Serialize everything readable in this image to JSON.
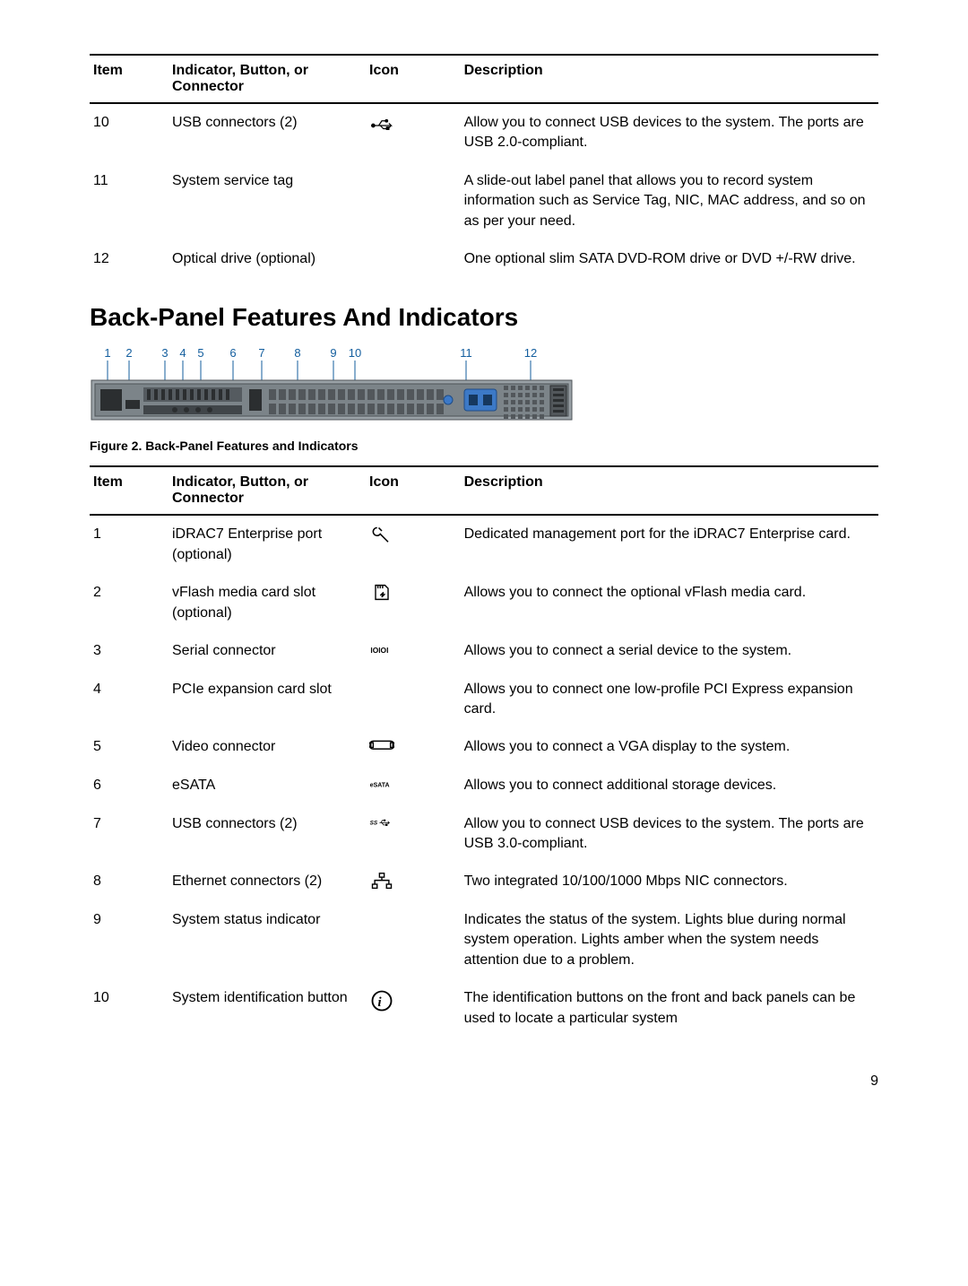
{
  "table1": {
    "headers": {
      "item": "Item",
      "indicator": "Indicator, Button, or Connector",
      "icon": "Icon",
      "description": "Description"
    },
    "rows": [
      {
        "item": "10",
        "indicator": "USB connectors (2)",
        "icon": "usb",
        "description": "Allow you to connect USB devices to the system. The ports are USB 2.0-compliant."
      },
      {
        "item": "11",
        "indicator": "System service tag",
        "icon": "",
        "description": "A slide-out label panel that allows you to record system information such as Service Tag, NIC, MAC address, and so on as per your need."
      },
      {
        "item": "12",
        "indicator": "Optical drive (optional)",
        "icon": "",
        "description": "One optional slim SATA DVD-ROM drive or DVD +/-RW drive."
      }
    ]
  },
  "section_heading": "Back-Panel Features And Indicators",
  "figure_caption": "Figure 2. Back-Panel Features and Indicators",
  "diagram": {
    "labels": [
      "1",
      "2",
      "3",
      "4",
      "5",
      "6",
      "7",
      "8",
      "9",
      "10",
      "11",
      "12"
    ],
    "label_positions_x": [
      20,
      44,
      84,
      104,
      124,
      160,
      192,
      232,
      272,
      296,
      420,
      492
    ],
    "chassis_color": "#9aa2a7",
    "chassis_border": "#4d5357",
    "bg_color": "#f2f2f2",
    "label_color": "#135e9e"
  },
  "table2": {
    "headers": {
      "item": "Item",
      "indicator": "Indicator, Button, or Connector",
      "icon": "Icon",
      "description": "Description"
    },
    "rows": [
      {
        "item": "1",
        "indicator": "iDRAC7 Enterprise port (optional)",
        "icon": "wrench",
        "description": "Dedicated management port for the iDRAC7 Enterprise card."
      },
      {
        "item": "2",
        "indicator": "vFlash media card slot (optional)",
        "icon": "sdcard",
        "description": "Allows you to connect the optional vFlash media card."
      },
      {
        "item": "3",
        "indicator": "Serial connector",
        "icon": "serial",
        "description": "Allows you to connect a serial device to the system."
      },
      {
        "item": "4",
        "indicator": "PCIe expansion card slot",
        "icon": "",
        "description": "Allows you to connect one low-profile PCI Express expansion card."
      },
      {
        "item": "5",
        "indicator": "Video connector",
        "icon": "vga",
        "description": "Allows you to connect a VGA display to the system."
      },
      {
        "item": "6",
        "indicator": "eSATA",
        "icon": "esata",
        "description": "Allows you to connect additional storage devices."
      },
      {
        "item": "7",
        "indicator": "USB connectors (2)",
        "icon": "ssusb",
        "description": "Allow you to connect USB devices to the system. The ports are USB 3.0-compliant."
      },
      {
        "item": "8",
        "indicator": "Ethernet connectors (2)",
        "icon": "network",
        "description": "Two integrated 10/100/1000 Mbps NIC connectors."
      },
      {
        "item": "9",
        "indicator": "System status indicator",
        "icon": "",
        "description": "Indicates the status of the system. Lights blue during normal system operation. Lights amber when the system needs attention due to a problem."
      },
      {
        "item": "10",
        "indicator": "System identification button",
        "icon": "id",
        "description": "The identification buttons on the front and back panels can be used to locate a particular system"
      }
    ]
  },
  "page_number": "9",
  "svg_icons": {
    "usb": "<svg viewBox='0 0 32 24'><g stroke='#000' stroke-width='1.4' fill='none'><circle cx='5' cy='16' r='2' fill='#000'/><path d='M7 16 H22'/><path d='M12 16 L16 10 H20'/><path d='M14 16 L18 20 H22'/><circle cx='22' cy='10' r='1.5' fill='#000'/><rect x='22' y='18' width='3' height='3' fill='#000'/><path d='M22 16 L28 16 L25 13 M28 16 L25 19'/></g></svg>",
    "wrench": "<svg viewBox='0 0 32 24'><g stroke='#000' stroke-width='1.8' fill='none'><path d='M10 4 a5 5 0 1 0 4 8 l10 10' /><path d='M12 4 l4 4'/></g></svg>",
    "sdcard": "<svg viewBox='0 0 32 24'><g stroke='#000' stroke-width='1.6' fill='none'><path d='M8 3 h12 l4 4 v14 h-16 z'/><path d='M11 3 v4 M14 3 v4 M17 3 v4'/><path d='M20 14 l-4 4 2 -6 -4 4' fill='#000'/></g></svg>",
    "serial": "<svg viewBox='0 0 40 16'><text x='2' y='13' font-family='Arial' font-size='12' font-weight='bold'>IOIOI</text></svg>",
    "vga": "<svg viewBox='0 0 32 20'><g stroke='#000' stroke-width='1.6' fill='none'><rect x='2' y='7' width='3' height='6'/><rect x='27' y='7' width='3' height='6'/><path d='M5 5 h22 a3 3 0 0 1 0 10 h-22 a3 3 0 0 1 0 -10 z'/></g></svg>",
    "esata": "<svg viewBox='0 0 40 16'><text x='1' y='12' font-family='Arial' font-size='10' font-weight='bold'>eSATA</text></svg>",
    "ssusb": "<svg viewBox='0 0 44 18'><text x='1' y='13' font-family='Arial' font-size='10' font-weight='bold' font-style='italic'>SS</text><g stroke='#000' stroke-width='1.2' fill='none'><path d='M18 10 H30'/><path d='M20 10 L23 6 H27'/><path d='M22 10 L25 14 H29'/><circle cx='27' cy='6' r='1.3' fill='#000'/><rect x='29' y='12.5' width='2.5' height='2.5' fill='#000'/><path d='M30 10 L35 10 L32.5 7.5 M35 10 L32.5 12.5'/></g></svg>",
    "network": "<svg viewBox='0 0 32 24'><g stroke='#000' stroke-width='1.6' fill='none'><rect x='13' y='2' width='6' height='5'/><rect x='4' y='16' width='6' height='5'/><rect x='22' y='16' width='6' height='5'/><path d='M16 7 v4 M16 11 h-9 v5 M16 11 h9 v5'/></g></svg>",
    "id": "<svg viewBox='0 0 24 24'><circle cx='12' cy='12' r='9' stroke='#000' stroke-width='1.6' fill='none'/><text x='8' y='17' font-family='Georgia, serif' font-size='13' font-style='italic' font-weight='bold'>i</text></svg>"
  }
}
